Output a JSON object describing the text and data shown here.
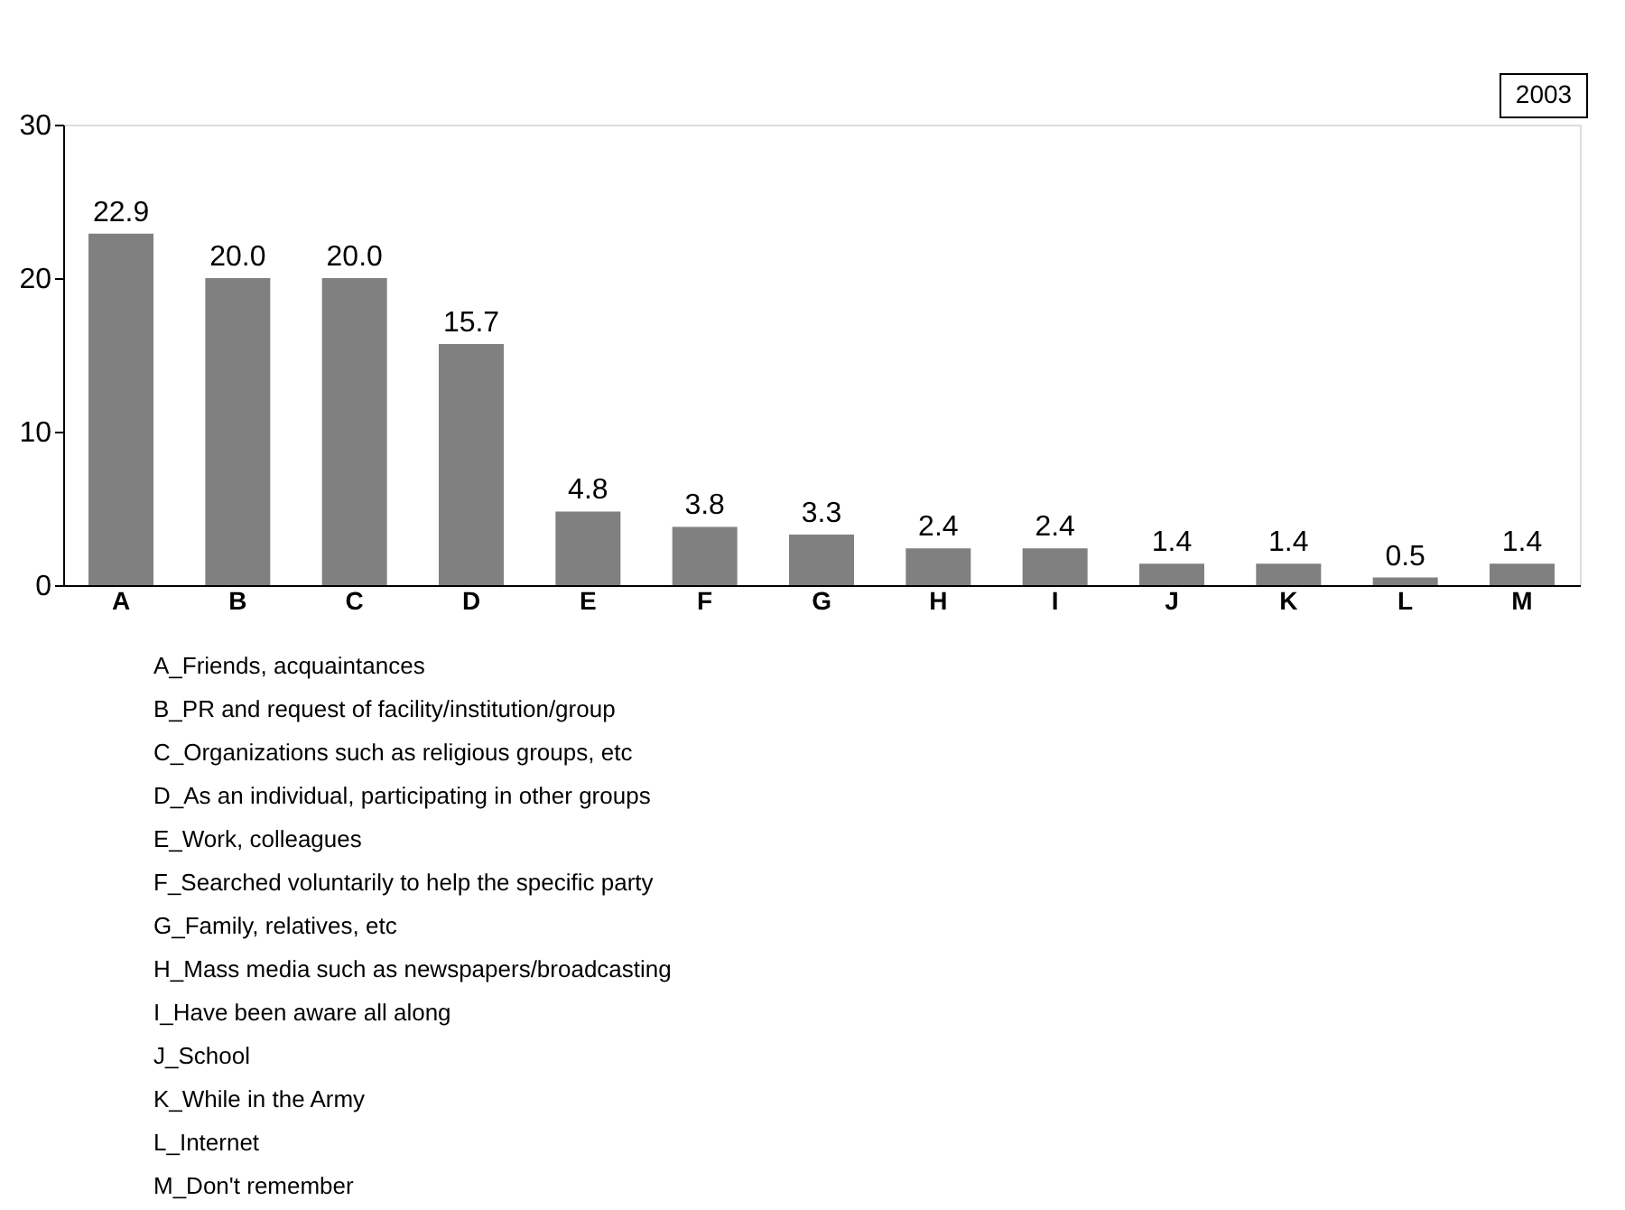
{
  "chart_data": {
    "type": "bar",
    "categories": [
      "A",
      "B",
      "C",
      "D",
      "E",
      "F",
      "G",
      "H",
      "I",
      "J",
      "K",
      "L",
      "M"
    ],
    "values": [
      22.9,
      20.0,
      20.0,
      15.7,
      4.8,
      3.8,
      3.3,
      2.4,
      2.4,
      1.4,
      1.4,
      0.5,
      1.4
    ],
    "value_labels": [
      "22.9",
      "20.0",
      "20.0",
      "15.7",
      "4.8",
      "3.8",
      "3.3",
      "2.4",
      "2.4",
      "1.4",
      "1.4",
      "0.5",
      "1.4"
    ],
    "color": "#808080",
    "ylim": [
      0,
      30
    ],
    "yticks": [
      0,
      10,
      20,
      30
    ],
    "grid": false,
    "annotations": [
      "2003",
      "A_Friends, acquaintances",
      "B_PR and request of facility/institution/group",
      "C_Organizations such as religious groups, etc",
      "D_As an individual, participating in other groups",
      "E_Work, colleagues",
      "F_Searched voluntarily to help the specific party",
      "G_Family, relatives, etc",
      "H_Mass media such as newspapers/broadcasting",
      "I_Have been aware all along",
      "J_School",
      "K_While in the Army",
      "L_Internet",
      "M_Don't remember"
    ]
  }
}
